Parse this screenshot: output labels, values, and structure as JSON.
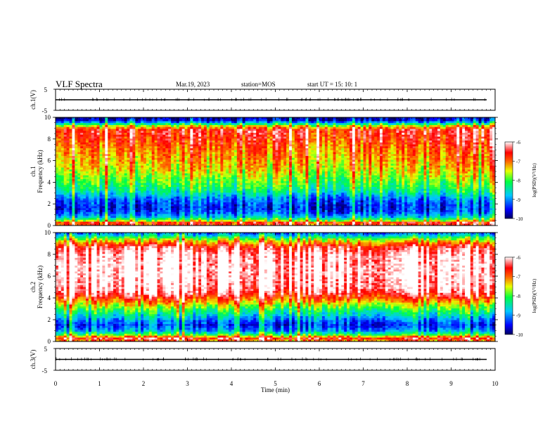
{
  "header": {
    "title": "VLF Spectra",
    "date": "Mar.19, 2023",
    "station": "station=MOS",
    "start_ut": "start  UT =   15: 10: 1"
  },
  "chart_data": {
    "type": "heatmap",
    "xlabel": "Time  (min)",
    "xlim": [
      0,
      10
    ],
    "x_ticks": [
      0,
      1,
      2,
      3,
      4,
      5,
      6,
      7,
      8,
      9,
      10
    ],
    "panels": [
      {
        "name": "ch1-waveform",
        "ylabel": "ch.1(V)",
        "ylim": [
          -5,
          5
        ],
        "y_tick_labels": [
          "5",
          "-5"
        ],
        "baseline": 0
      },
      {
        "name": "ch1-spectrogram",
        "ylabel_line1": "ch.1",
        "ylabel_line2": "Frequency  (kHz)",
        "ylim": [
          0,
          10
        ],
        "y_ticks": [
          0,
          2,
          4,
          6,
          8,
          10
        ],
        "colorbar_label": "log(PSD)(V²/Hz)",
        "colorbar_range": [
          -10,
          -6
        ],
        "colorbar_ticks": [
          "-6",
          "-7",
          "-8",
          "-9",
          "-10"
        ],
        "profile": [
          [
            0,
            -7.2
          ],
          [
            0.2,
            -6.4
          ],
          [
            0.5,
            -8.0
          ],
          [
            0.8,
            -8.8
          ],
          [
            1.2,
            -9.3
          ],
          [
            1.6,
            -9.5
          ],
          [
            2.0,
            -9.4
          ],
          [
            2.4,
            -9.2
          ],
          [
            2.8,
            -8.8
          ],
          [
            3.2,
            -8.4
          ],
          [
            3.8,
            -8.1
          ],
          [
            4.5,
            -7.8
          ],
          [
            5.2,
            -7.5
          ],
          [
            6.0,
            -7.3
          ],
          [
            7.0,
            -7.1
          ],
          [
            8.0,
            -6.8
          ],
          [
            8.8,
            -6.6
          ],
          [
            9.2,
            -7.6
          ],
          [
            9.5,
            -8.9
          ],
          [
            9.7,
            -9.6
          ],
          [
            10,
            -9.9
          ]
        ]
      },
      {
        "name": "ch2-spectrogram",
        "ylabel_line1": "ch.2",
        "ylabel_line2": "Frequency  (kHz)",
        "ylim": [
          0,
          10
        ],
        "y_ticks": [
          0,
          2,
          4,
          6,
          8,
          10
        ],
        "colorbar_label": "log(PSD)(V²/Hz)",
        "colorbar_range": [
          -10,
          -6
        ],
        "colorbar_ticks": [
          "-6",
          "-7",
          "-8",
          "-9",
          "-10"
        ],
        "profile": [
          [
            0,
            -7.2
          ],
          [
            0.3,
            -6.5
          ],
          [
            0.6,
            -8.0
          ],
          [
            1.0,
            -9.0
          ],
          [
            1.5,
            -9.4
          ],
          [
            2.0,
            -9.0
          ],
          [
            2.5,
            -8.5
          ],
          [
            3.0,
            -8.0
          ],
          [
            3.5,
            -7.4
          ],
          [
            4.0,
            -6.8
          ],
          [
            4.5,
            -6.3
          ],
          [
            5.0,
            -6.1
          ],
          [
            6.0,
            -6.0
          ],
          [
            7.0,
            -6.0
          ],
          [
            8.0,
            -6.1
          ],
          [
            8.6,
            -6.4
          ],
          [
            9.0,
            -7.0
          ],
          [
            9.4,
            -7.8
          ],
          [
            9.7,
            -8.6
          ],
          [
            10,
            -9.2
          ]
        ]
      },
      {
        "name": "ch3-waveform",
        "ylabel": "ch.3(V)",
        "ylim": [
          -5,
          5
        ],
        "y_tick_labels": [
          "5",
          "-5"
        ],
        "baseline": 0
      }
    ]
  }
}
